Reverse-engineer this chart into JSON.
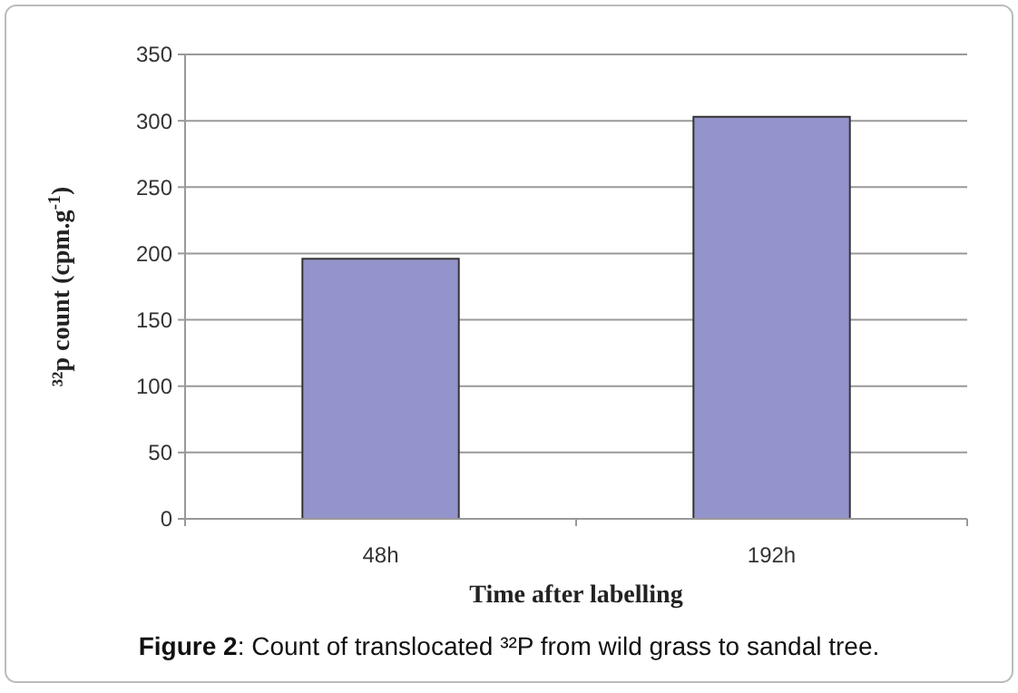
{
  "chart_data": {
    "type": "bar",
    "categories": [
      "48h",
      "192h"
    ],
    "values": [
      196,
      303
    ],
    "color": "#9494cc",
    "ylim": [
      0,
      350
    ],
    "yticks": [
      0,
      50,
      100,
      150,
      200,
      250,
      300,
      350
    ],
    "grid": "y",
    "xlabel": "Time after labelling",
    "ylabel": "³²p count (cpm.g$^{-1}$)",
    "annotations": [
      "Figure 2: Count of translocated ³²P from wild grass to sandal tree."
    ]
  }
}
